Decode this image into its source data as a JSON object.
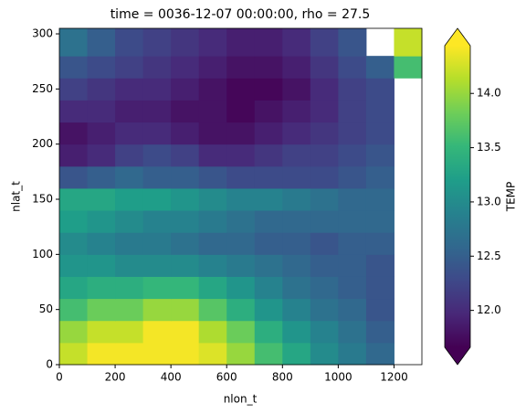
{
  "chart_data": {
    "type": "heatmap",
    "title": "time = 0036-12-07 00:00:00, rho = 27.5",
    "xlabel": "nlon_t",
    "ylabel": "nlat_t",
    "colorbar_label": "TEMP",
    "colormap": "viridis",
    "colorbar_extend": "both",
    "xbins": [
      0,
      100,
      200,
      300,
      400,
      500,
      600,
      700,
      800,
      900,
      1000,
      1100,
      1200,
      1300
    ],
    "ybins": [
      0,
      20,
      40,
      60,
      80,
      100,
      120,
      140,
      160,
      180,
      200,
      220,
      240,
      260,
      280,
      305
    ],
    "values": [
      [
        14.2,
        14.4,
        14.4,
        14.4,
        14.4,
        14.3,
        14.0,
        13.6,
        13.3,
        13.0,
        12.8,
        12.6,
        null
      ],
      [
        14.0,
        14.2,
        14.2,
        14.4,
        14.4,
        14.1,
        13.8,
        13.4,
        13.1,
        12.9,
        12.7,
        12.5,
        null
      ],
      [
        13.6,
        13.8,
        13.8,
        14.0,
        14.0,
        13.7,
        13.4,
        13.1,
        12.9,
        12.7,
        12.6,
        12.4,
        null
      ],
      [
        13.3,
        13.4,
        13.4,
        13.5,
        13.5,
        13.3,
        13.1,
        12.9,
        12.7,
        12.6,
        12.5,
        12.4,
        null
      ],
      [
        13.1,
        13.1,
        13.0,
        13.0,
        13.0,
        12.9,
        12.8,
        12.7,
        12.6,
        12.5,
        12.5,
        12.4,
        null
      ],
      [
        13.0,
        12.9,
        12.8,
        12.8,
        12.7,
        12.6,
        12.6,
        12.5,
        12.5,
        12.4,
        12.5,
        12.5,
        null
      ],
      [
        13.2,
        13.1,
        13.0,
        12.9,
        12.9,
        12.8,
        12.7,
        12.6,
        12.6,
        12.6,
        12.6,
        12.6,
        null
      ],
      [
        13.3,
        13.3,
        13.2,
        13.2,
        13.1,
        13.0,
        12.9,
        12.9,
        12.8,
        12.7,
        12.6,
        12.6,
        null
      ],
      [
        12.4,
        12.5,
        12.6,
        12.5,
        12.5,
        12.4,
        12.3,
        12.3,
        12.3,
        12.3,
        12.4,
        12.5,
        null
      ],
      [
        11.9,
        12.0,
        12.2,
        12.3,
        12.2,
        12.0,
        12.0,
        12.1,
        12.2,
        12.2,
        12.3,
        12.4,
        null
      ],
      [
        11.8,
        11.9,
        12.0,
        12.0,
        11.9,
        11.8,
        11.8,
        11.9,
        12.0,
        12.1,
        12.2,
        12.3,
        null
      ],
      [
        12.0,
        12.0,
        11.9,
        11.9,
        11.8,
        11.8,
        11.7,
        11.8,
        11.9,
        12.0,
        12.2,
        12.3,
        null
      ],
      [
        12.2,
        12.1,
        12.0,
        12.0,
        11.9,
        11.8,
        11.7,
        11.7,
        11.8,
        12.0,
        12.2,
        12.3,
        null
      ],
      [
        12.4,
        12.3,
        12.2,
        12.1,
        12.0,
        11.9,
        11.8,
        11.8,
        11.9,
        12.1,
        12.3,
        12.5,
        13.6
      ],
      [
        12.7,
        12.5,
        12.3,
        12.2,
        12.1,
        12.0,
        11.9,
        11.9,
        12.0,
        12.2,
        12.4,
        null,
        14.2
      ]
    ],
    "xlim": [
      0,
      1300
    ],
    "ylim": [
      0,
      305
    ],
    "xticks": [
      0,
      200,
      400,
      600,
      800,
      1000,
      1200
    ],
    "yticks": [
      0,
      50,
      100,
      150,
      200,
      250,
      300
    ],
    "clim": [
      11.66,
      14.44
    ],
    "cticks": [
      {
        "value": 12,
        "label": "12.0"
      },
      12.5,
      {
        "value": 13,
        "label": "13.0"
      },
      13.5,
      {
        "value": 14,
        "label": "14.0"
      }
    ]
  }
}
